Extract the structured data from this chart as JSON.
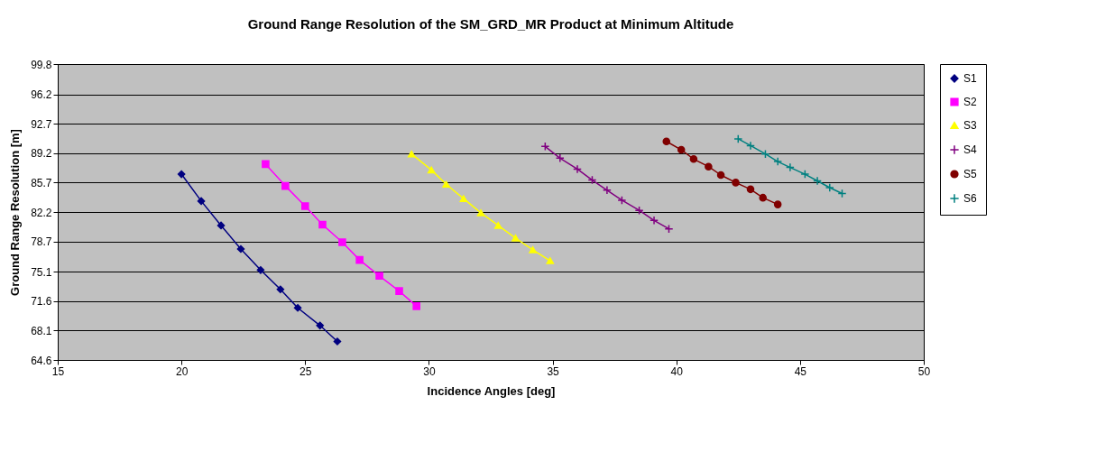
{
  "chart_data": {
    "type": "line",
    "title": "Ground Range Resolution of the SM_GRD_MR Product at Minimum Altitude",
    "xlabel": "Incidence Angles [deg]",
    "ylabel": "Ground Range Resolution [m]",
    "xlim": [
      15,
      50
    ],
    "xticks": [
      15,
      20,
      25,
      30,
      35,
      40,
      45,
      50
    ],
    "ylim": [
      64.6,
      99.8
    ],
    "yticks": [
      64.6,
      68.1,
      71.6,
      75.1,
      78.7,
      82.2,
      85.7,
      89.2,
      92.7,
      96.2,
      99.8
    ],
    "grid": "y",
    "legend": "right",
    "series": [
      {
        "name": "S1",
        "color": "#000080",
        "marker": "diamond",
        "x": [
          20.0,
          20.8,
          21.6,
          22.4,
          23.2,
          24.0,
          24.7,
          25.6,
          26.3
        ],
        "values": [
          86.7,
          83.5,
          80.6,
          77.8,
          75.3,
          73.0,
          70.8,
          68.7,
          66.8
        ]
      },
      {
        "name": "S2",
        "color": "#ff00ff",
        "marker": "square",
        "x": [
          23.4,
          24.2,
          25.0,
          25.7,
          26.5,
          27.2,
          28.0,
          28.8,
          29.5
        ],
        "values": [
          87.9,
          85.3,
          82.9,
          80.7,
          78.6,
          76.5,
          74.6,
          72.8,
          71.0
        ]
      },
      {
        "name": "S3",
        "color": "#ffff00",
        "marker": "triangle",
        "x": [
          29.3,
          30.1,
          30.7,
          31.4,
          32.1,
          32.8,
          33.5,
          34.2,
          34.9
        ],
        "values": [
          89.1,
          87.2,
          85.5,
          83.8,
          82.1,
          80.6,
          79.1,
          77.7,
          76.4
        ]
      },
      {
        "name": "S4",
        "color": "#800080",
        "marker": "cross",
        "x": [
          34.7,
          35.3,
          36.0,
          36.6,
          37.2,
          37.8,
          38.5,
          39.1,
          39.7
        ],
        "values": [
          90.0,
          88.6,
          87.3,
          86.0,
          84.8,
          83.6,
          82.4,
          81.2,
          80.2
        ]
      },
      {
        "name": "S5",
        "color": "#800000",
        "marker": "circle",
        "x": [
          39.6,
          40.2,
          40.7,
          41.3,
          41.8,
          42.4,
          43.0,
          43.5,
          44.1
        ],
        "values": [
          90.6,
          89.6,
          88.5,
          87.6,
          86.6,
          85.7,
          84.9,
          83.9,
          83.1
        ]
      },
      {
        "name": "S6",
        "color": "#008080",
        "marker": "cross",
        "x": [
          42.5,
          43.0,
          43.6,
          44.1,
          44.6,
          45.2,
          45.7,
          46.2,
          46.7
        ],
        "values": [
          90.9,
          90.1,
          89.1,
          88.2,
          87.5,
          86.7,
          85.9,
          85.1,
          84.4
        ]
      }
    ]
  }
}
